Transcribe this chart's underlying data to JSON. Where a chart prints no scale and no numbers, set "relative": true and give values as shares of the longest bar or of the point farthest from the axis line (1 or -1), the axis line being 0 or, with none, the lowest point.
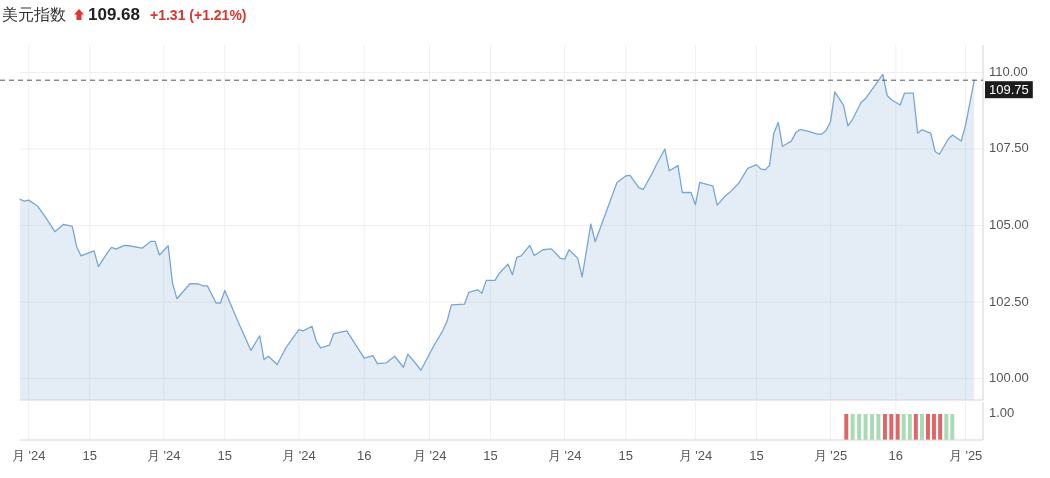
{
  "chart_data": [
    {
      "type": "area",
      "title": "美元指数",
      "annotations": [
        "109.68",
        "+1.31 (+1.21%)"
      ],
      "x": [
        "2024-06-29",
        "2024-06-30",
        "2024-07-01",
        "2024-07-03",
        "2024-07-05",
        "2024-07-07",
        "2024-07-09",
        "2024-07-11",
        "2024-07-12",
        "2024-07-13",
        "2024-07-16",
        "2024-07-17",
        "2024-07-19",
        "2024-07-20",
        "2024-07-21",
        "2024-07-23",
        "2024-07-24",
        "2024-07-27",
        "2024-07-29",
        "2024-07-30",
        "2024-07-31",
        "2024-08-02",
        "2024-08-03",
        "2024-08-04",
        "2024-08-07",
        "2024-08-09",
        "2024-08-10",
        "2024-08-11",
        "2024-08-13",
        "2024-08-14",
        "2024-08-15",
        "2024-08-18",
        "2024-08-21",
        "2024-08-23",
        "2024-08-24",
        "2024-08-25",
        "2024-08-27",
        "2024-08-29",
        "2024-09-01",
        "2024-09-02",
        "2024-09-04",
        "2024-09-05",
        "2024-09-06",
        "2024-09-08",
        "2024-09-09",
        "2024-09-12",
        "2024-09-16",
        "2024-09-18",
        "2024-09-19",
        "2024-09-21",
        "2024-09-23",
        "2024-09-25",
        "2024-09-26",
        "2024-09-28",
        "2024-09-29",
        "2024-10-02",
        "2024-10-04",
        "2024-10-05",
        "2024-10-06",
        "2024-10-09",
        "2024-10-10",
        "2024-10-12",
        "2024-10-13",
        "2024-10-14",
        "2024-10-16",
        "2024-10-17",
        "2024-10-19",
        "2024-10-20",
        "2024-10-21",
        "2024-10-22",
        "2024-10-24",
        "2024-10-25",
        "2024-10-27",
        "2024-10-29",
        "2024-10-31",
        "2024-11-01",
        "2024-11-02",
        "2024-11-04",
        "2024-11-05",
        "2024-11-07",
        "2024-11-08",
        "2024-11-13",
        "2024-11-15",
        "2024-11-16",
        "2024-11-18",
        "2024-11-19",
        "2024-11-21",
        "2024-11-22",
        "2024-11-24",
        "2024-11-25",
        "2024-11-27",
        "2024-11-28",
        "2024-11-30",
        "2024-12-01",
        "2024-12-02",
        "2024-12-04",
        "2024-12-05",
        "2024-12-06",
        "2024-12-08",
        "2024-12-09",
        "2024-12-11",
        "2024-12-13",
        "2024-12-15",
        "2024-12-16",
        "2024-12-17",
        "2024-12-18",
        "2024-12-19",
        "2024-12-20",
        "2024-12-21",
        "2024-12-23",
        "2024-12-24",
        "2024-12-25",
        "2024-12-27",
        "2024-12-29",
        "2024-12-30",
        "2024-12-31",
        "2025-01-01",
        "2025-01-02",
        "2025-01-04",
        "2025-01-05",
        "2025-01-06",
        "2025-01-08",
        "2025-01-09",
        "2025-01-11",
        "2025-01-13",
        "2025-01-14",
        "2025-01-15",
        "2025-01-17",
        "2025-01-18",
        "2025-01-20",
        "2025-01-21",
        "2025-01-22",
        "2025-01-24",
        "2025-01-25",
        "2025-01-26",
        "2025-01-28",
        "2025-01-29",
        "2025-01-31",
        "2025-02-01",
        "2025-02-03"
      ],
      "values": [
        105.86,
        105.8,
        105.83,
        105.64,
        105.24,
        104.8,
        105.04,
        104.97,
        104.31,
        104.01,
        104.17,
        103.66,
        104.1,
        104.29,
        104.23,
        104.35,
        104.34,
        104.26,
        104.48,
        104.48,
        104.04,
        104.34,
        103.12,
        102.61,
        103.1,
        103.09,
        103.03,
        103.03,
        102.47,
        102.47,
        102.88,
        101.87,
        100.92,
        101.4,
        100.62,
        100.73,
        100.46,
        101.0,
        101.6,
        101.56,
        101.71,
        101.22,
        101.0,
        101.09,
        101.47,
        101.56,
        100.67,
        100.75,
        100.49,
        100.51,
        100.73,
        100.37,
        100.8,
        100.46,
        100.27,
        101.08,
        101.56,
        101.87,
        102.41,
        102.43,
        102.82,
        102.9,
        102.79,
        103.21,
        103.21,
        103.44,
        103.74,
        103.39,
        103.96,
        104.01,
        104.35,
        104.02,
        104.21,
        104.24,
        103.93,
        103.9,
        104.21,
        103.93,
        103.32,
        105.05,
        104.47,
        106.41,
        106.62,
        106.64,
        106.24,
        106.18,
        106.68,
        106.98,
        107.5,
        106.79,
        106.96,
        106.08,
        106.08,
        105.68,
        106.41,
        106.33,
        106.3,
        105.67,
        105.99,
        106.1,
        106.39,
        106.87,
        106.99,
        106.85,
        106.82,
        106.96,
        108.02,
        108.37,
        107.59,
        107.76,
        108.03,
        108.14,
        108.08,
        107.99,
        107.99,
        108.11,
        108.39,
        109.37,
        108.93,
        108.26,
        108.45,
        109.02,
        109.14,
        109.54,
        109.94,
        109.25,
        109.11,
        108.94,
        109.33,
        109.33,
        108.02,
        108.13,
        108.02,
        107.42,
        107.33,
        107.82,
        107.96,
        107.76,
        108.28,
        109.75
      ],
      "color": "#78a6d2",
      "xlim": [
        "2024-06-29",
        "2025-02-05"
      ],
      "xticks": [
        {
          "value": "2024-07-01",
          "label": null
        },
        {
          "value": "2024-07-15",
          "label": null
        },
        {
          "value": "2024-08-01",
          "label": null
        },
        {
          "value": "2024-08-15",
          "label": null
        },
        {
          "value": "2024-09-01",
          "label": null
        },
        {
          "value": "2024-09-16",
          "label": null
        },
        {
          "value": "2024-10-01",
          "label": null
        },
        {
          "value": "2024-10-15",
          "label": null
        },
        {
          "value": "2024-11-01",
          "label": null
        },
        {
          "value": "2024-11-15",
          "label": null
        },
        {
          "value": "2024-12-01",
          "label": null
        },
        {
          "value": "2024-12-15",
          "label": null
        },
        {
          "value": "2025-01-01",
          "label": null
        },
        {
          "value": "2025-01-16",
          "label": null
        },
        {
          "value": "2025-02-01",
          "label": null
        }
      ],
      "ylim": [
        99.3,
        110.9
      ],
      "yticks": [
        {
          "value": 100,
          "label": "100.00"
        },
        {
          "value": 102.5,
          "label": "102.50"
        },
        {
          "value": 105,
          "label": "105.00"
        },
        {
          "value": 107.5,
          "label": "107.50"
        },
        {
          "value": 110,
          "label": "110.00"
        }
      ],
      "grid": true,
      "tick_labels": "y",
      "ref_lines": [
        {
          "axis": "y",
          "value": 109.75,
          "label": "109.75",
          "color": "#555555",
          "line_style": "dashed"
        }
      ]
    },
    {
      "type": "bar",
      "relative": true,
      "annotations": [
        "1.00"
      ],
      "x": [
        "2025-01-04T15:00",
        "2025-01-06T02:00",
        "2025-01-07T14:00",
        "2025-01-09T01:00",
        "2025-01-10T13:00",
        "2025-01-12T00:00",
        "2025-01-13T12:00",
        "2025-01-14T23:00",
        "2025-01-16T10:00",
        "2025-01-17T19:00",
        "2025-01-19T05:00",
        "2025-01-20T14:00",
        "2025-01-22T00:00",
        "2025-01-23T09:00",
        "2025-01-24T18:00",
        "2025-01-26T04:00",
        "2025-01-27T14:00",
        "2025-01-28T23:00"
      ],
      "values": [
        1,
        1,
        1,
        1,
        1,
        1,
        1,
        1,
        1,
        1,
        1,
        1,
        1,
        1,
        1,
        1,
        1,
        1
      ],
      "colors": [
        "#e06666",
        "#a8dab5",
        "#a8dab5",
        "#a8dab5",
        "#a8dab5",
        "#a8dab5",
        "#e06666",
        "#e06666",
        "#e06666",
        "#a8dab5",
        "#a8dab5",
        "#e06666",
        "#a8dab5",
        "#e06666",
        "#e06666",
        "#e06666",
        "#a8dab5",
        "#a8dab5"
      ],
      "xlim": [
        "2024-06-29",
        "2025-02-05"
      ],
      "xticks": [
        {
          "value": "2024-07-01",
          "label": "月 '24"
        },
        {
          "value": "2024-07-15",
          "label": "15"
        },
        {
          "value": "2024-08-01",
          "label": "月 '24"
        },
        {
          "value": "2024-08-15",
          "label": "15"
        },
        {
          "value": "2024-09-01",
          "label": "月 '24"
        },
        {
          "value": "2024-09-16",
          "label": "16"
        },
        {
          "value": "2024-10-01",
          "label": "月 '24"
        },
        {
          "value": "2024-10-15",
          "label": "15"
        },
        {
          "value": "2024-11-01",
          "label": "月 '24"
        },
        {
          "value": "2024-11-15",
          "label": "15"
        },
        {
          "value": "2024-12-01",
          "label": "月 '24"
        },
        {
          "value": "2024-12-15",
          "label": "15"
        },
        {
          "value": "2025-01-01",
          "label": "月 '25"
        },
        {
          "value": "2025-01-16",
          "label": "16"
        },
        {
          "value": "2025-02-01",
          "label": "月 '25"
        }
      ],
      "grid": "x"
    }
  ]
}
